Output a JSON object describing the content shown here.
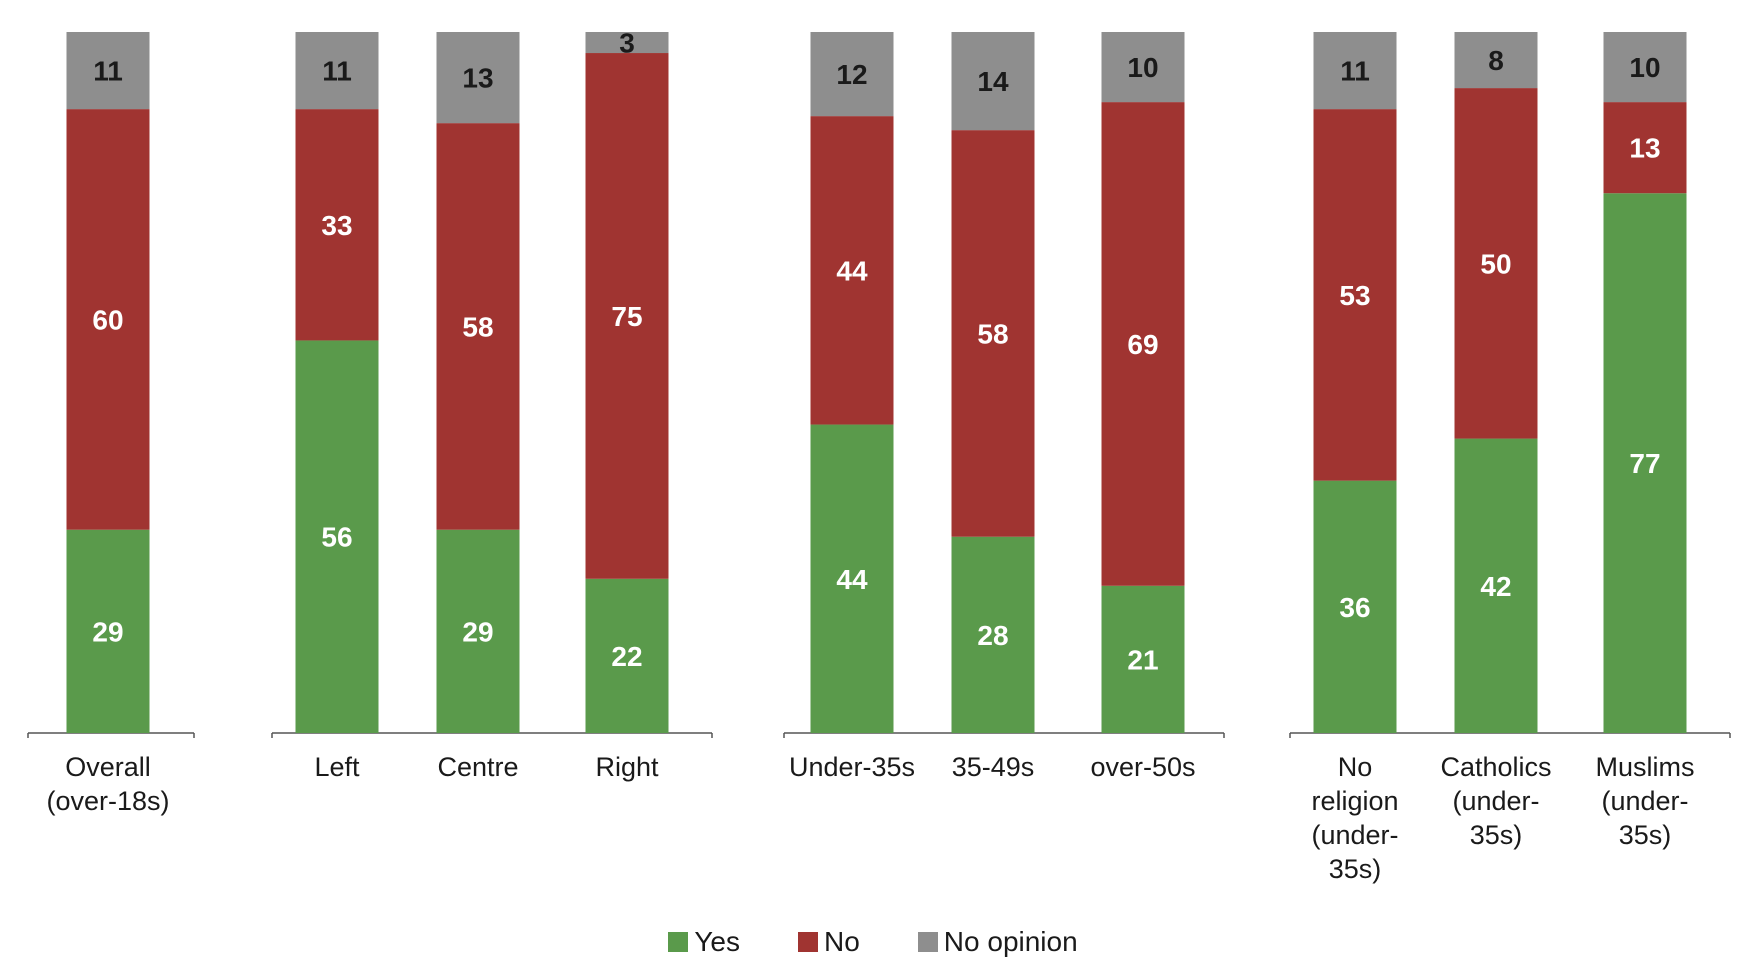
{
  "chart_data": {
    "type": "bar",
    "stacked": true,
    "legend_position": "bottom-center",
    "colors": {
      "yes": "#5a9a4b",
      "no": "#a03431",
      "no_opinion": "#8e8e8e"
    },
    "groups": [
      {
        "name": "overall",
        "categories": [
          {
            "label": [
              "Overall",
              "(over-18s)"
            ],
            "yes": 29,
            "no": 60,
            "no_opinion": 11
          }
        ]
      },
      {
        "name": "politics",
        "categories": [
          {
            "label": [
              "Left"
            ],
            "yes": 56,
            "no": 33,
            "no_opinion": 11
          },
          {
            "label": [
              "Centre"
            ],
            "yes": 29,
            "no": 58,
            "no_opinion": 13
          },
          {
            "label": [
              "Right"
            ],
            "yes": 22,
            "no": 75,
            "no_opinion": 3
          }
        ]
      },
      {
        "name": "age",
        "categories": [
          {
            "label": [
              "Under-35s"
            ],
            "yes": 44,
            "no": 44,
            "no_opinion": 12
          },
          {
            "label": [
              "35-49s"
            ],
            "yes": 28,
            "no": 58,
            "no_opinion": 14
          },
          {
            "label": [
              "over-50s"
            ],
            "yes": 21,
            "no": 69,
            "no_opinion": 10
          }
        ]
      },
      {
        "name": "religion",
        "categories": [
          {
            "label": [
              "No",
              "religion",
              "(under-",
              "35s)"
            ],
            "yes": 36,
            "no": 53,
            "no_opinion": 11
          },
          {
            "label": [
              "Catholics",
              "(under-",
              "35s)"
            ],
            "yes": 42,
            "no": 50,
            "no_opinion": 8
          },
          {
            "label": [
              "Muslims",
              "(under-",
              "35s)"
            ],
            "yes": 77,
            "no": 13,
            "no_opinion": 10
          }
        ]
      }
    ],
    "series": [
      {
        "key": "yes",
        "name": "Yes"
      },
      {
        "key": "no",
        "name": "No"
      },
      {
        "key": "no_opinion",
        "name": "No opinion"
      }
    ],
    "ylim": [
      0,
      100
    ],
    "grid": false
  }
}
